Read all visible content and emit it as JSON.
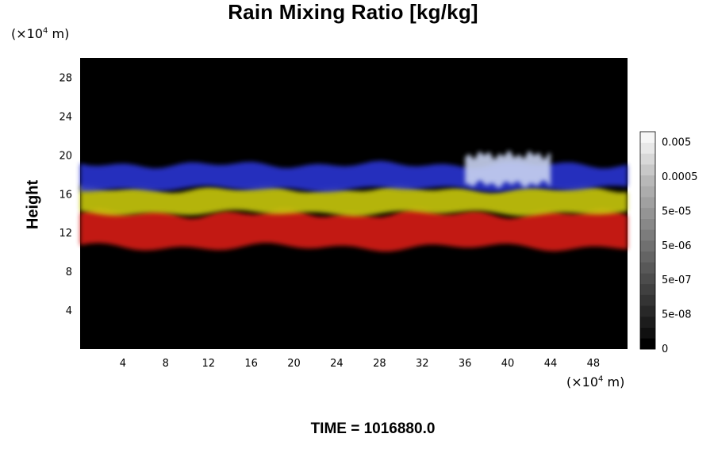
{
  "chart_data": {
    "type": "heatmap",
    "title": "Rain Mixing Ratio [kg/kg]",
    "ylabel": "Height",
    "xlabel": "",
    "x_unit": {
      "prefix": "(×10",
      "exponent": "4",
      "suffix": " m)"
    },
    "y_unit": {
      "prefix": "(×10",
      "exponent": "4",
      "suffix": " m)"
    },
    "xlim": [
      0,
      51.2
    ],
    "ylim": [
      0,
      30
    ],
    "x_ticks": [
      "4",
      "8",
      "12",
      "16",
      "20",
      "24",
      "28",
      "32",
      "36",
      "40",
      "44",
      "48"
    ],
    "y_ticks": [
      "4",
      "8",
      "12",
      "16",
      "20",
      "24",
      "28"
    ],
    "background_color": "#000000",
    "regions": [
      {
        "name": "",
        "color": "#d81e14",
        "height_range": [
          10.5,
          14
        ]
      },
      {
        "name": "",
        "color": "#c8c810",
        "height_range": [
          14,
          16.5
        ]
      },
      {
        "name": "",
        "color": "#2c36d2",
        "height_range": [
          16.5,
          19
        ]
      },
      {
        "name": "",
        "color": "#c8d2f0",
        "height_range": [
          17,
          20
        ],
        "x_range": [
          36,
          44
        ]
      }
    ],
    "colorbar": {
      "labels": [
        "0",
        "5e-08",
        "5e-07",
        "5e-06",
        "5e-05",
        "0.0005",
        "0.005"
      ],
      "colors": [
        "#000000",
        "#101010",
        "#1c1c1c",
        "#282828",
        "#343434",
        "#404040",
        "#4c4c4c",
        "#585858",
        "#646464",
        "#707070",
        "#7c7c7c",
        "#888888",
        "#949494",
        "#a0a0a0",
        "#acacac",
        "#b8b8b8",
        "#c8c8c8",
        "#d8d8d8",
        "#e8e8e8",
        "#f6f6f6"
      ]
    }
  },
  "footer": {
    "time_label": "TIME = 1016880.0"
  }
}
